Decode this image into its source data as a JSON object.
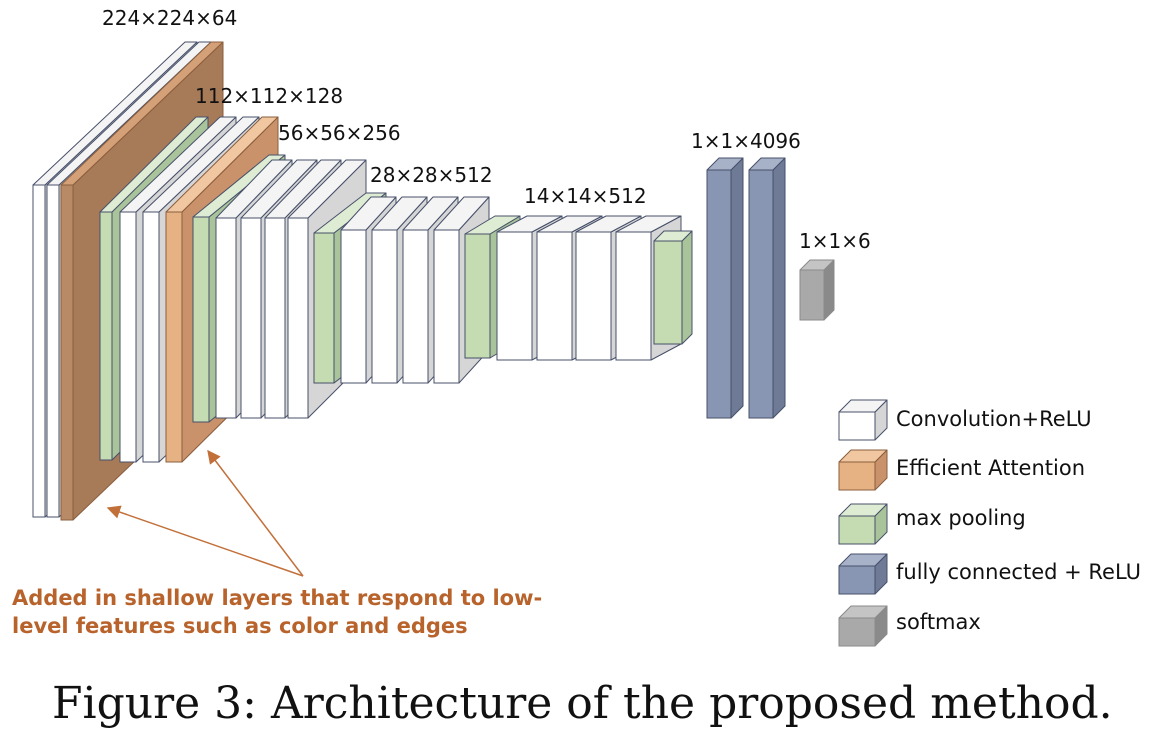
{
  "dimension_labels": {
    "block1": "224×224×64",
    "block2": "112×112×128",
    "block3": "56×56×256",
    "block4": "28×28×512",
    "block5": "14×14×512",
    "fc": "1×1×4096",
    "softmax": "1×1×6"
  },
  "legend": {
    "conv": "Convolution+ReLU",
    "attention": "Efficient Attention",
    "pool": "max pooling",
    "fc": "fully connected + ReLU",
    "softmax": "softmax"
  },
  "annotation": {
    "line1": "Added in shallow layers that respond to low-",
    "line2": "level features such as color and edges"
  },
  "caption": "Figure 3:  Architecture of the proposed method.",
  "colors": {
    "conv": "#ffffff",
    "attention": "#b88a66",
    "attention_light": "#e7b283",
    "pool": "#c5dcb2",
    "fc": "#8896b3",
    "softmax": "#a9a9a9",
    "annotation": "#b8632b"
  }
}
